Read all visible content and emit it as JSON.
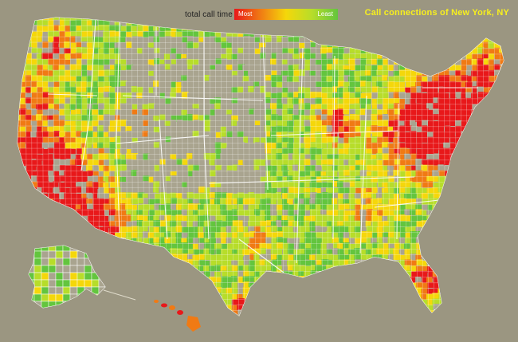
{
  "legend": {
    "label": "total call time",
    "most": "Most",
    "least": "Least",
    "scale_colors": [
      "#e8181a",
      "#f07a14",
      "#f5d70a",
      "#b7dd2a",
      "#63c53e"
    ]
  },
  "title": "Call connections of New York, NY",
  "colors": {
    "background": "#9b9681",
    "land_unshaded": "#a9a48f",
    "borders": "#ffffff"
  }
}
